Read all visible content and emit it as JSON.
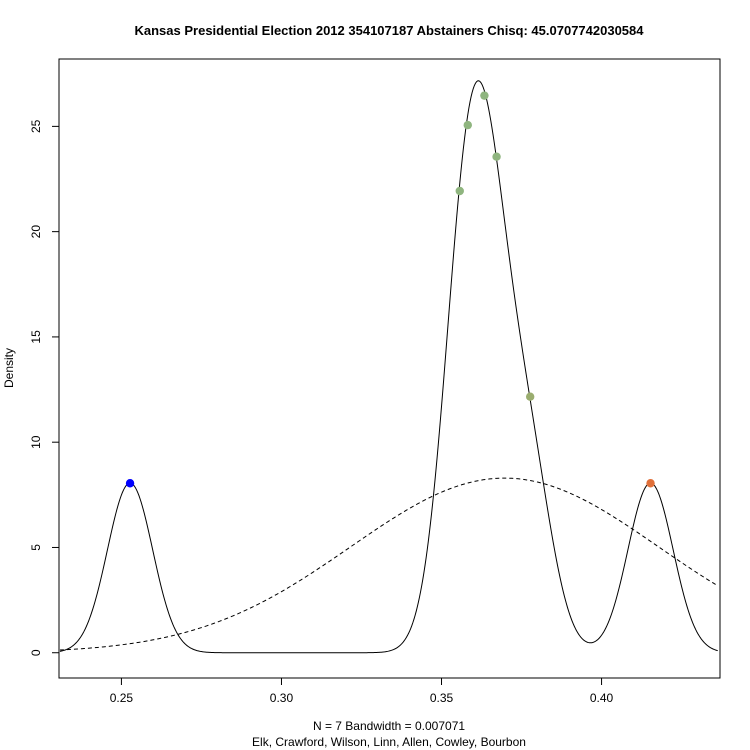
{
  "chart_data": {
    "type": "line",
    "title": "Kansas Presidential Election 2012 354107187 Abstainers Chisq: 45.0707742030584",
    "xlabel_line1": "N = 7   Bandwidth = 0.007071",
    "xlabel_line2": "Elk, Crawford, Wilson, Linn, Allen, Cowley, Bourbon",
    "ylabel": "Density",
    "xlim": [
      0.2305,
      0.437
    ],
    "ylim": [
      -1.2,
      28.2
    ],
    "x_ticks": [
      0.25,
      0.3,
      0.35,
      0.4
    ],
    "x_tick_labels": [
      "0.25",
      "0.30",
      "0.35",
      "0.40"
    ],
    "y_ticks": [
      0,
      5,
      10,
      15,
      20,
      25
    ],
    "y_tick_labels": [
      "0",
      "5",
      "10",
      "15",
      "20",
      "25"
    ],
    "bandwidth": 0.007071,
    "n": 7,
    "kde_curve": {
      "style": "solid",
      "color": "#000000",
      "x_range": [
        0.2308,
        0.4363
      ],
      "observations": [
        0.2527,
        0.3557,
        0.3582,
        0.3634,
        0.3672,
        0.3777,
        0.4153
      ]
    },
    "normal_curve": {
      "style": "dashed",
      "color": "#000000",
      "mean": 0.3697,
      "sd": 0.0481
    },
    "points": [
      {
        "x": 0.2527,
        "y": 8.05,
        "color": "#0000ff"
      },
      {
        "x": 0.3557,
        "y": 21.93,
        "color": "#8fb57f"
      },
      {
        "x": 0.3582,
        "y": 25.06,
        "color": "#8fb57f"
      },
      {
        "x": 0.3634,
        "y": 26.46,
        "color": "#8fb57f"
      },
      {
        "x": 0.3672,
        "y": 23.56,
        "color": "#8fb57f"
      },
      {
        "x": 0.3777,
        "y": 12.16,
        "color": "#9aad6f"
      },
      {
        "x": 0.4153,
        "y": 8.05,
        "color": "#e0703a"
      }
    ],
    "grid": false,
    "legend": "none"
  }
}
